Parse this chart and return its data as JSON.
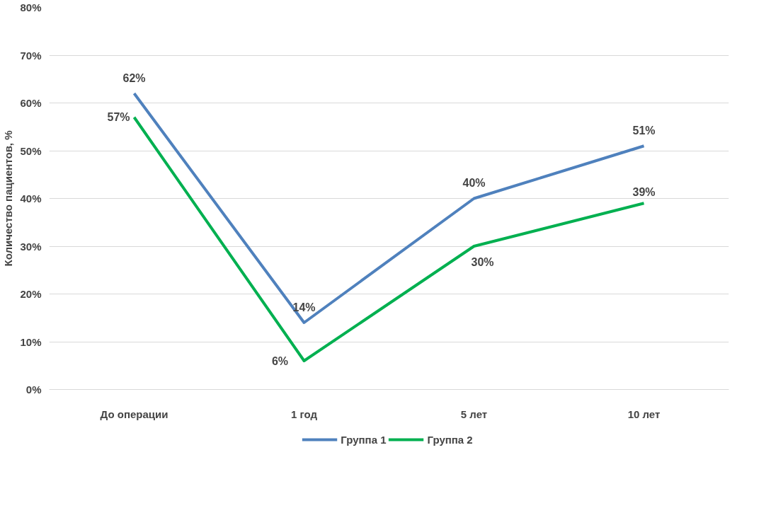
{
  "chart_data": {
    "type": "line",
    "ylabel": "Количество пациентов, %",
    "categories": [
      "До операции",
      "1 год",
      "5 лет",
      "10 лет"
    ],
    "series": [
      {
        "name": "Группа 1",
        "color": "#4f81bd",
        "values": [
          62,
          14,
          40,
          51
        ],
        "value_labels": [
          "62%",
          "14%",
          "40%",
          "51%"
        ]
      },
      {
        "name": "Группа 2",
        "color": "#00b050",
        "values": [
          57,
          6,
          30,
          39
        ],
        "value_labels": [
          "57%",
          "6%",
          "30%",
          "39%"
        ]
      }
    ],
    "ylim": [
      0,
      80
    ],
    "yticks": [
      {
        "value": 0,
        "label": "0%"
      },
      {
        "value": 10,
        "label": "10%"
      },
      {
        "value": 20,
        "label": "20%"
      },
      {
        "value": 30,
        "label": "30%"
      },
      {
        "value": 40,
        "label": "40%"
      },
      {
        "value": 50,
        "label": "50%"
      },
      {
        "value": 60,
        "label": "60%"
      },
      {
        "value": 70,
        "label": "70%"
      },
      {
        "value": 80,
        "label": "80%"
      }
    ],
    "grid": "y",
    "legend": "bottom",
    "marker": "none",
    "line_style": "solid"
  }
}
